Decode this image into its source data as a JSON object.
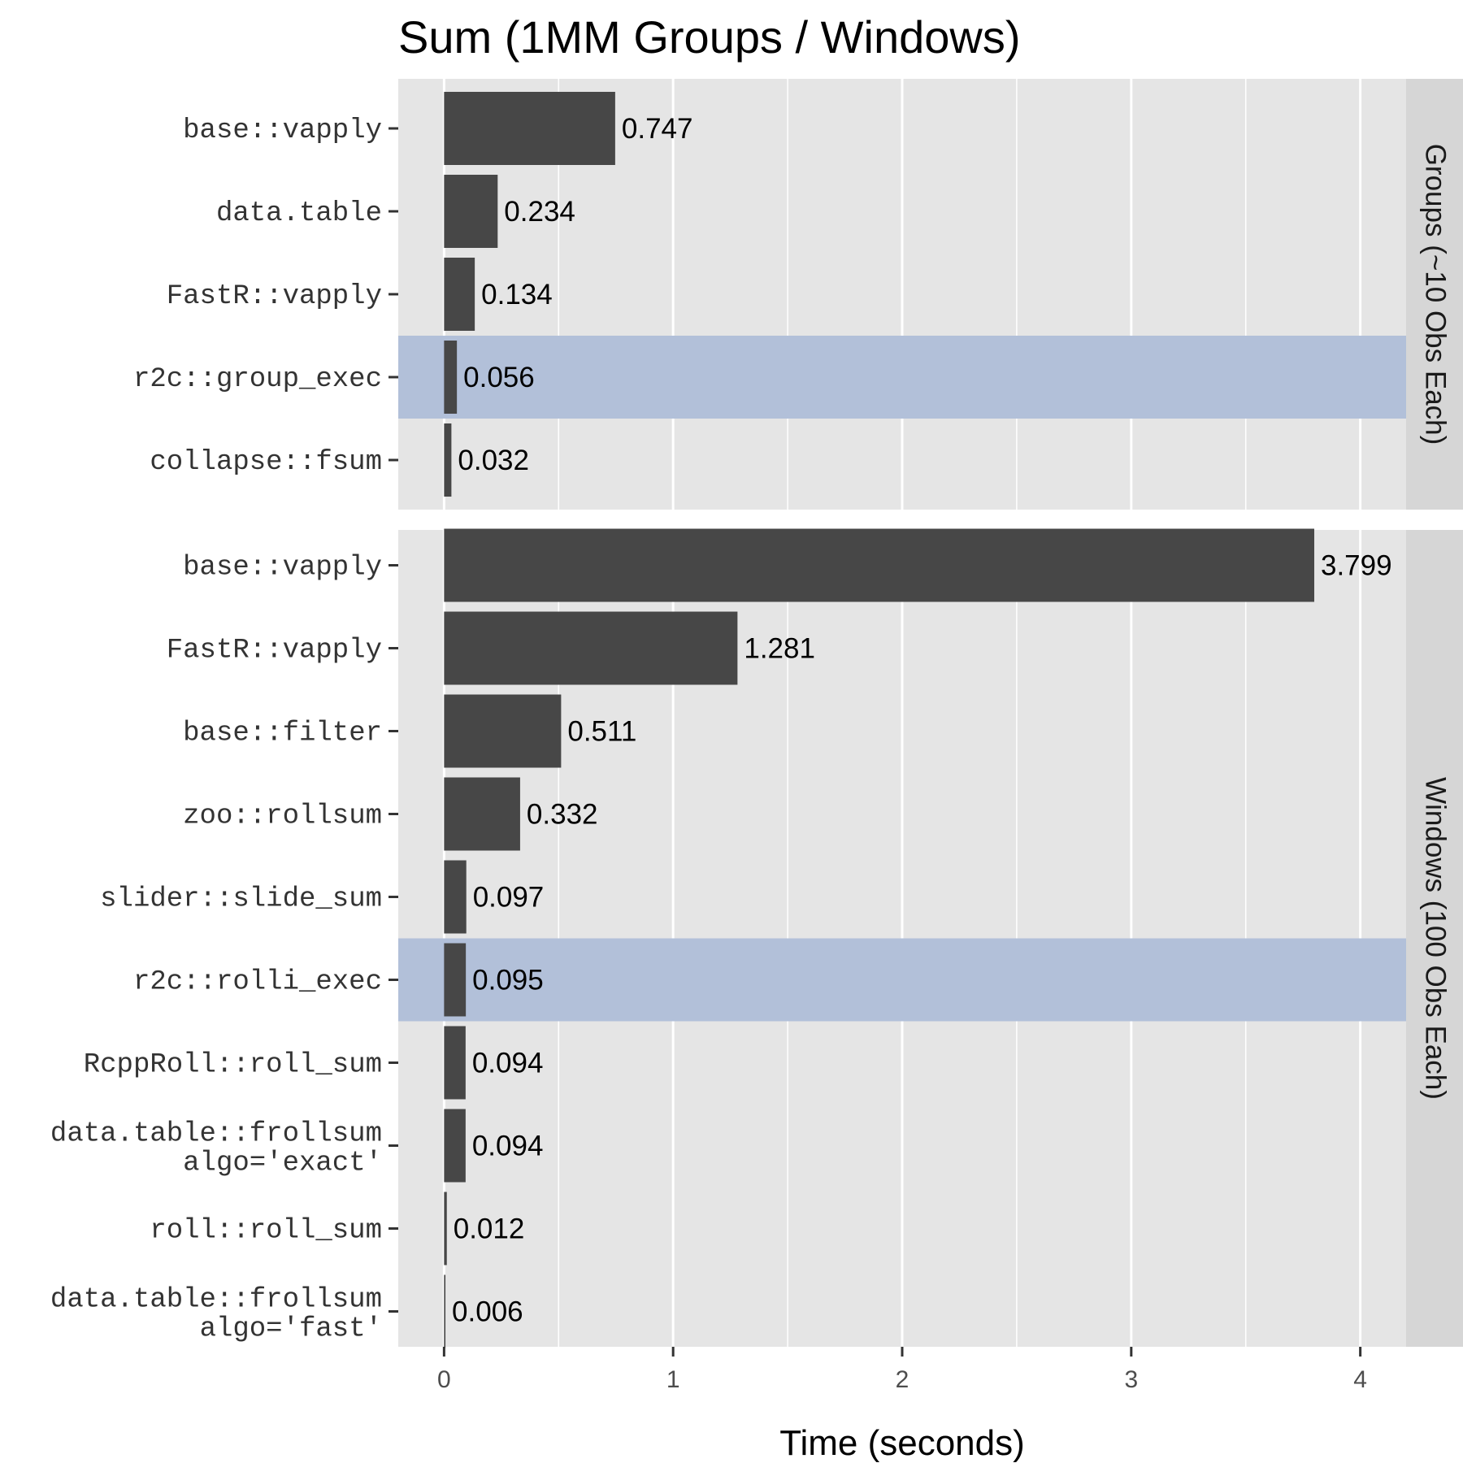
{
  "chart_data": {
    "type": "bar",
    "orientation": "horizontal",
    "title": "Sum (1MM Groups / Windows)",
    "xlabel": "Time (seconds)",
    "ylabel": "",
    "xlim": [
      -0.2,
      4.2
    ],
    "x_ticks": [
      0,
      1,
      2,
      3,
      4
    ],
    "grid": true,
    "colors": {
      "bar": "#474747",
      "highlight": "#b2c0d9",
      "panel": "#e5e5e5",
      "strip": "#d6d6d6",
      "grid": "#ffffff"
    },
    "panels": [
      {
        "strip_label": "Groups (~10 Obs Each)",
        "categories": [
          {
            "label": [
              "base::vapply"
            ],
            "value": 0.747,
            "value_label": "0.747",
            "highlight": false
          },
          {
            "label": [
              "data.table"
            ],
            "value": 0.234,
            "value_label": "0.234",
            "highlight": false
          },
          {
            "label": [
              "FastR::vapply"
            ],
            "value": 0.134,
            "value_label": "0.134",
            "highlight": false
          },
          {
            "label": [
              "r2c::group_exec"
            ],
            "value": 0.056,
            "value_label": "0.056",
            "highlight": true
          },
          {
            "label": [
              "collapse::fsum"
            ],
            "value": 0.032,
            "value_label": "0.032",
            "highlight": false
          }
        ]
      },
      {
        "strip_label": "Windows (100 Obs Each)",
        "categories": [
          {
            "label": [
              "base::vapply"
            ],
            "value": 3.799,
            "value_label": "3.799",
            "highlight": false
          },
          {
            "label": [
              "FastR::vapply"
            ],
            "value": 1.281,
            "value_label": "1.281",
            "highlight": false
          },
          {
            "label": [
              "base::filter"
            ],
            "value": 0.511,
            "value_label": "0.511",
            "highlight": false
          },
          {
            "label": [
              "zoo::rollsum"
            ],
            "value": 0.332,
            "value_label": "0.332",
            "highlight": false
          },
          {
            "label": [
              "slider::slide_sum"
            ],
            "value": 0.097,
            "value_label": "0.097",
            "highlight": false
          },
          {
            "label": [
              "r2c::rolli_exec"
            ],
            "value": 0.095,
            "value_label": "0.095",
            "highlight": true
          },
          {
            "label": [
              "RcppRoll::roll_sum"
            ],
            "value": 0.094,
            "value_label": "0.094",
            "highlight": false
          },
          {
            "label": [
              "data.table::frollsum",
              "algo='exact'"
            ],
            "value": 0.094,
            "value_label": "0.094",
            "highlight": false
          },
          {
            "label": [
              "roll::roll_sum"
            ],
            "value": 0.012,
            "value_label": "0.012",
            "highlight": false
          },
          {
            "label": [
              "data.table::frollsum",
              "algo='fast'"
            ],
            "value": 0.006,
            "value_label": "0.006",
            "highlight": false
          }
        ]
      }
    ]
  }
}
